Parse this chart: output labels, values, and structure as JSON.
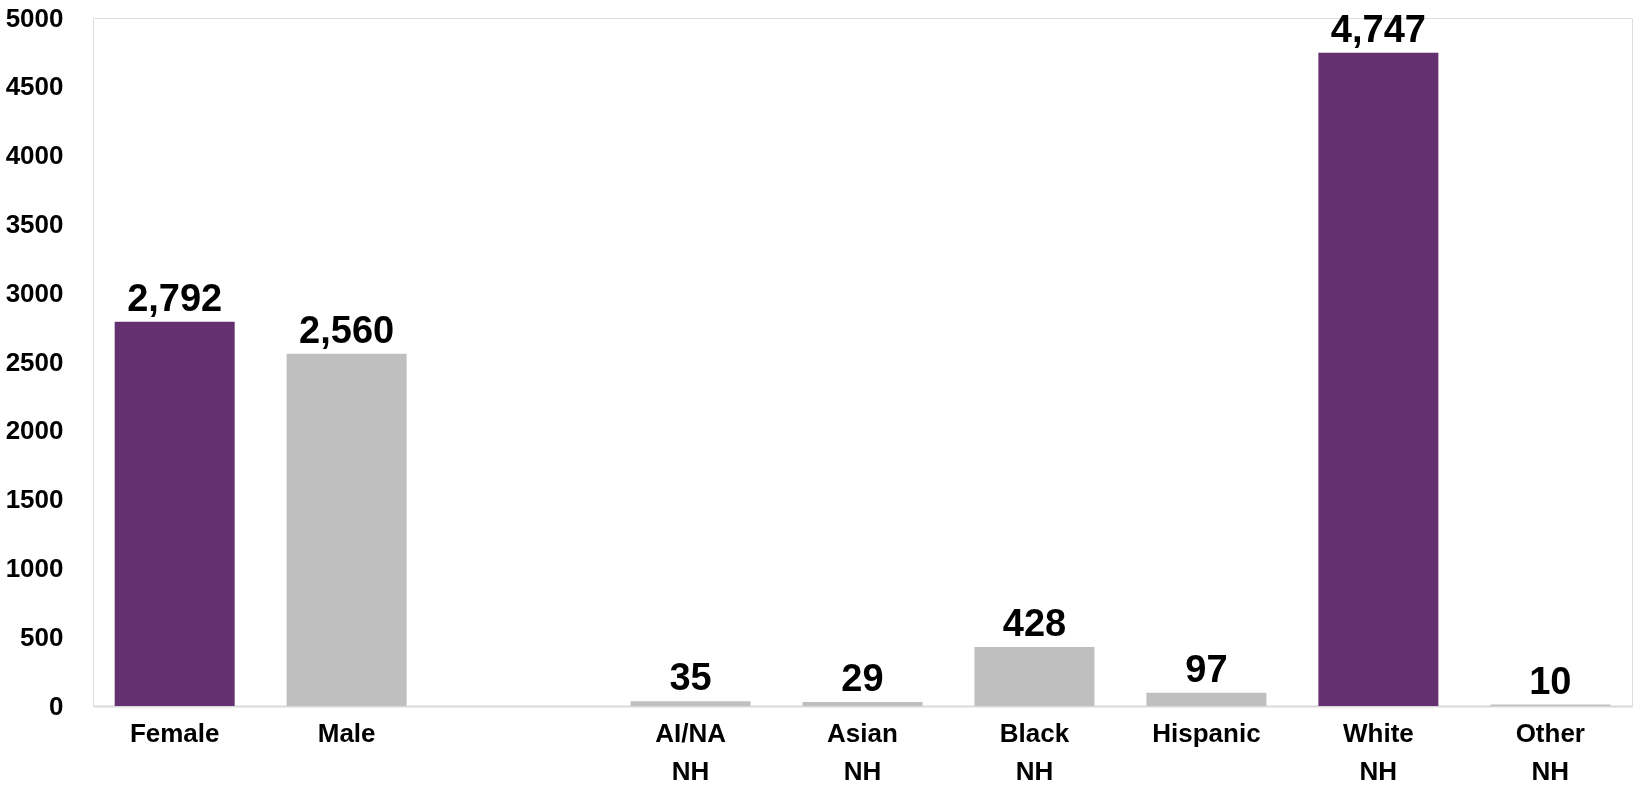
{
  "chart_data": {
    "type": "bar",
    "categories": [
      "Female",
      "Male",
      null,
      "AI/NA NH",
      "Asian NH",
      "Black NH",
      "Hispanic",
      "White NH",
      "Other NH"
    ],
    "values": [
      2792,
      2560,
      null,
      35,
      29,
      428,
      97,
      4747,
      10
    ],
    "colors": [
      "#65306f",
      "#bfbfbf",
      "#bfbfbf",
      "#bfbfbf",
      "#bfbfbf",
      "#bfbfbf",
      "#bfbfbf",
      "#65306f",
      "#bfbfbf"
    ],
    "ylim": [
      0,
      5000
    ],
    "yticks": [
      0,
      500,
      1000,
      1500,
      2000,
      2500,
      3000,
      3500,
      4000,
      4500,
      5000
    ],
    "value_labels": [
      "2,792",
      "2,560",
      null,
      "35",
      "29",
      "428",
      "97",
      "4,747",
      "10"
    ],
    "grid": false
  }
}
